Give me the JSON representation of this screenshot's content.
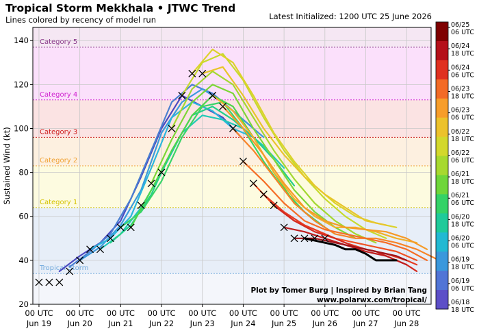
{
  "header": {
    "title": "Tropical Storm Mekkhala • JTWC Trend",
    "subtitle": "Lines colored by recency of model run",
    "initialized": "Latest Initialized: 1200 UTC 25 June 2026"
  },
  "credits": {
    "line1": "Plot by Tomer Burg | Inspired by Brian Tang",
    "line2": "www.polarwx.com/tropical/"
  },
  "chart_data": {
    "type": "line",
    "ylabel": "Sustained Wind (kt)",
    "ylim": [
      20,
      146
    ],
    "xlim": [
      -0.15,
      9.6
    ],
    "x_ticks": [
      {
        "x": 0,
        "label": "00 UTC\nJun 19"
      },
      {
        "x": 1,
        "label": "00 UTC\nJun 20"
      },
      {
        "x": 2,
        "label": "00 UTC\nJun 21"
      },
      {
        "x": 3,
        "label": "00 UTC\nJun 22"
      },
      {
        "x": 4,
        "label": "00 UTC\nJun 23"
      },
      {
        "x": 5,
        "label": "00 UTC\nJun 24"
      },
      {
        "x": 6,
        "label": "00 UTC\nJun 25"
      },
      {
        "x": 7,
        "label": "00 UTC\nJun 26"
      },
      {
        "x": 8,
        "label": "00 UTC\nJun 27"
      },
      {
        "x": 9,
        "label": "00 UTC\nJun 28"
      }
    ],
    "y_ticks": [
      20,
      40,
      60,
      80,
      100,
      120,
      140
    ],
    "grid": true,
    "categories": [
      {
        "name": "Tropical Storm",
        "lo": 34,
        "hi": 64,
        "color": "#6fa8dc"
      },
      {
        "name": "Category 1",
        "lo": 64,
        "hi": 83,
        "color": "#d4c200"
      },
      {
        "name": "Category 2",
        "lo": 83,
        "hi": 96,
        "color": "#f0a030"
      },
      {
        "name": "Category 3",
        "lo": 96,
        "hi": 113,
        "color": "#cc1a1a"
      },
      {
        "name": "Category 4",
        "lo": 113,
        "hi": 137,
        "color": "#d020d0"
      },
      {
        "name": "Category 5",
        "lo": 137,
        "hi": 146,
        "color": "#8a3a8a"
      }
    ],
    "best_track": [
      [
        0,
        30
      ],
      [
        0.25,
        30
      ],
      [
        0.5,
        30
      ],
      [
        0.75,
        35
      ],
      [
        1,
        40
      ],
      [
        1.25,
        45
      ],
      [
        1.5,
        45
      ],
      [
        1.75,
        50
      ],
      [
        2,
        55
      ],
      [
        2.25,
        55
      ],
      [
        2.5,
        65
      ],
      [
        2.75,
        75
      ],
      [
        3,
        80
      ],
      [
        3.25,
        100
      ],
      [
        3.5,
        115
      ],
      [
        3.75,
        125
      ],
      [
        4,
        125
      ],
      [
        4.25,
        115
      ],
      [
        4.5,
        110
      ],
      [
        4.75,
        100
      ],
      [
        5,
        85
      ],
      [
        5.25,
        75
      ],
      [
        5.5,
        70
      ],
      [
        5.75,
        65
      ],
      [
        6,
        55
      ],
      [
        6.25,
        50
      ],
      [
        6.5,
        50
      ],
      [
        6.75,
        50
      ],
      [
        7,
        50
      ]
    ],
    "series": [
      {
        "color": "#4a4ac0",
        "points": [
          [
            0.5,
            35
          ],
          [
            1,
            42
          ],
          [
            1.5,
            48
          ],
          [
            2,
            58
          ],
          [
            2.5,
            78
          ],
          [
            3,
            100
          ],
          [
            3.5,
            115
          ],
          [
            4,
            110
          ],
          [
            4.5,
            105
          ],
          [
            5,
            95
          ]
        ]
      },
      {
        "color": "#4a7fd0",
        "points": [
          [
            0.75,
            37
          ],
          [
            1.25,
            44
          ],
          [
            1.75,
            52
          ],
          [
            2.25,
            68
          ],
          [
            2.75,
            90
          ],
          [
            3.25,
            112
          ],
          [
            3.75,
            120
          ],
          [
            4.25,
            116
          ],
          [
            4.75,
            108
          ],
          [
            5.25,
            100
          ]
        ]
      },
      {
        "color": "#3c9adc",
        "points": [
          [
            1,
            40
          ],
          [
            1.5,
            46
          ],
          [
            2,
            56
          ],
          [
            2.5,
            72
          ],
          [
            3,
            98
          ],
          [
            3.5,
            112
          ],
          [
            4,
            118
          ],
          [
            4.5,
            112
          ],
          [
            5,
            104
          ],
          [
            5.5,
            96
          ]
        ]
      },
      {
        "color": "#2cb7dc",
        "points": [
          [
            1.25,
            45
          ],
          [
            1.75,
            50
          ],
          [
            2.25,
            60
          ],
          [
            2.75,
            82
          ],
          [
            3.25,
            105
          ],
          [
            3.75,
            112
          ],
          [
            4.25,
            108
          ],
          [
            4.75,
            100
          ],
          [
            5.25,
            96
          ]
        ]
      },
      {
        "color": "#21c9b6",
        "points": [
          [
            1.5,
            45
          ],
          [
            2,
            52
          ],
          [
            2.5,
            64
          ],
          [
            3,
            80
          ],
          [
            3.5,
            98
          ],
          [
            4,
            106
          ],
          [
            4.5,
            104
          ],
          [
            5,
            100
          ],
          [
            5.5,
            92
          ],
          [
            6,
            82
          ]
        ]
      },
      {
        "color": "#24cf8a",
        "points": [
          [
            1.75,
            48
          ],
          [
            2.25,
            56
          ],
          [
            2.75,
            70
          ],
          [
            3.25,
            90
          ],
          [
            3.75,
            106
          ],
          [
            4.25,
            110
          ],
          [
            4.75,
            104
          ],
          [
            5.25,
            96
          ],
          [
            5.75,
            86
          ],
          [
            6.25,
            74
          ]
        ]
      },
      {
        "color": "#3ad468",
        "points": [
          [
            2,
            55
          ],
          [
            2.5,
            62
          ],
          [
            3,
            76
          ],
          [
            3.5,
            96
          ],
          [
            4,
            110
          ],
          [
            4.5,
            112
          ],
          [
            5,
            100
          ],
          [
            5.5,
            85
          ],
          [
            6,
            72
          ],
          [
            6.5,
            62
          ],
          [
            7,
            55
          ]
        ]
      },
      {
        "color": "#4fd54b",
        "points": [
          [
            2.25,
            55
          ],
          [
            2.75,
            72
          ],
          [
            3.25,
            90
          ],
          [
            3.75,
            106
          ],
          [
            4.25,
            115
          ],
          [
            4.75,
            110
          ],
          [
            5.25,
            96
          ],
          [
            5.75,
            80
          ],
          [
            6.25,
            66
          ],
          [
            6.75,
            58
          ],
          [
            7.25,
            52
          ]
        ]
      },
      {
        "color": "#7cd636",
        "points": [
          [
            2.75,
            75
          ],
          [
            3.25,
            95
          ],
          [
            3.75,
            112
          ],
          [
            4.25,
            120
          ],
          [
            4.75,
            116
          ],
          [
            5.25,
            100
          ],
          [
            5.75,
            86
          ],
          [
            6.25,
            72
          ],
          [
            6.75,
            62
          ],
          [
            7.25,
            55
          ],
          [
            7.75,
            50
          ]
        ]
      },
      {
        "color": "#a3d830",
        "points": [
          [
            3.25,
            100
          ],
          [
            3.75,
            118
          ],
          [
            4.25,
            126
          ],
          [
            4.75,
            120
          ],
          [
            5.25,
            105
          ],
          [
            5.75,
            90
          ],
          [
            6.25,
            77
          ],
          [
            6.75,
            66
          ],
          [
            7.25,
            58
          ],
          [
            7.75,
            52
          ],
          [
            8.25,
            48
          ]
        ]
      },
      {
        "color": "#c6da2c",
        "points": [
          [
            3.5,
            115
          ],
          [
            4,
            130
          ],
          [
            4.5,
            134
          ],
          [
            5,
            122
          ],
          [
            5.5,
            105
          ],
          [
            6,
            90
          ],
          [
            6.5,
            78
          ],
          [
            7,
            68
          ],
          [
            7.5,
            60
          ],
          [
            8,
            54
          ],
          [
            8.5,
            50
          ]
        ]
      },
      {
        "color": "#dcd22a",
        "points": [
          [
            3.75,
            125
          ],
          [
            4.25,
            136
          ],
          [
            4.75,
            130
          ],
          [
            5.25,
            115
          ],
          [
            5.75,
            98
          ],
          [
            6.25,
            85
          ],
          [
            6.75,
            74
          ],
          [
            7.25,
            66
          ],
          [
            7.75,
            60
          ],
          [
            8.25,
            57
          ],
          [
            8.75,
            55
          ]
        ]
      },
      {
        "color": "#e8c52a",
        "points": [
          [
            4,
            125
          ],
          [
            4.5,
            128
          ],
          [
            5,
            115
          ],
          [
            5.5,
            100
          ],
          [
            6,
            88
          ],
          [
            6.5,
            78
          ],
          [
            7,
            70
          ],
          [
            7.5,
            64
          ],
          [
            8,
            58
          ],
          [
            8.5,
            56
          ]
        ]
      },
      {
        "color": "#f0b02a",
        "points": [
          [
            4.25,
            115
          ],
          [
            4.75,
            108
          ],
          [
            5.25,
            96
          ],
          [
            5.75,
            80
          ],
          [
            6.25,
            68
          ],
          [
            6.75,
            60
          ],
          [
            7.25,
            55
          ],
          [
            7.75,
            55
          ],
          [
            8.25,
            53
          ],
          [
            8.75,
            50
          ],
          [
            9.25,
            48
          ]
        ]
      },
      {
        "color": "#f59a28",
        "points": [
          [
            4.5,
            110
          ],
          [
            5,
            100
          ],
          [
            5.5,
            88
          ],
          [
            6,
            75
          ],
          [
            6.5,
            64
          ],
          [
            7,
            58
          ],
          [
            7.5,
            55
          ],
          [
            8,
            54
          ],
          [
            8.5,
            53
          ],
          [
            9,
            50
          ],
          [
            9.5,
            45
          ]
        ]
      },
      {
        "color": "#f78428",
        "points": [
          [
            4.75,
            100
          ],
          [
            5.25,
            90
          ],
          [
            5.75,
            78
          ],
          [
            6.25,
            66
          ],
          [
            6.75,
            58
          ],
          [
            7.25,
            52
          ],
          [
            7.75,
            50
          ],
          [
            8.25,
            50
          ],
          [
            8.75,
            48
          ],
          [
            9.25,
            45
          ],
          [
            9.8,
            40
          ]
        ]
      },
      {
        "color": "#f56d26",
        "points": [
          [
            5,
            85
          ],
          [
            5.5,
            76
          ],
          [
            6,
            66
          ],
          [
            6.5,
            58
          ],
          [
            7,
            54
          ],
          [
            7.5,
            52
          ],
          [
            8,
            50
          ],
          [
            8.5,
            48
          ],
          [
            9,
            45
          ],
          [
            9.5,
            40
          ]
        ]
      },
      {
        "color": "#f05224",
        "points": [
          [
            5.25,
            75
          ],
          [
            5.75,
            65
          ],
          [
            6.25,
            58
          ],
          [
            6.75,
            54
          ],
          [
            7.25,
            50
          ],
          [
            7.75,
            48
          ],
          [
            8.25,
            46
          ],
          [
            8.75,
            44
          ],
          [
            9.25,
            40
          ]
        ]
      },
      {
        "color": "#e63b22",
        "points": [
          [
            5.5,
            70
          ],
          [
            6,
            62
          ],
          [
            6.5,
            56
          ],
          [
            7,
            52
          ],
          [
            7.5,
            48
          ],
          [
            8,
            45
          ],
          [
            8.5,
            43
          ],
          [
            9,
            40
          ],
          [
            9.25,
            38
          ]
        ]
      },
      {
        "color": "#d42a20",
        "points": [
          [
            5.75,
            65
          ],
          [
            6.25,
            58
          ],
          [
            6.75,
            53
          ],
          [
            7.25,
            50
          ],
          [
            7.75,
            46
          ],
          [
            8.25,
            44
          ],
          [
            8.75,
            40
          ],
          [
            9,
            38
          ],
          [
            9.25,
            35
          ]
        ]
      },
      {
        "color": "#bf1d1e",
        "points": [
          [
            6,
            55
          ],
          [
            6.5,
            53
          ],
          [
            7,
            50
          ],
          [
            7.5,
            47
          ],
          [
            8,
            44
          ],
          [
            8.5,
            42
          ],
          [
            8.75,
            40
          ],
          [
            9,
            38
          ]
        ]
      },
      {
        "color": "#a0141a",
        "points": [
          [
            6.25,
            50
          ],
          [
            6.75,
            50
          ],
          [
            7.25,
            48
          ],
          [
            7.75,
            46
          ],
          [
            8.25,
            44
          ],
          [
            8.75,
            42
          ],
          [
            9,
            40
          ]
        ]
      },
      {
        "color": "#000000",
        "points": [
          [
            6.5,
            50
          ],
          [
            7,
            48
          ],
          [
            7.25,
            47
          ],
          [
            7.5,
            45
          ],
          [
            7.75,
            45
          ],
          [
            8,
            43
          ],
          [
            8.25,
            40
          ],
          [
            8.5,
            40
          ],
          [
            8.75,
            40
          ]
        ]
      }
    ],
    "colorbar": {
      "labels": [
        "06/25\n06 UTC",
        "06/24\n18 UTC",
        "06/24\n06 UTC",
        "06/23\n18 UTC",
        "06/23\n06 UTC",
        "06/22\n18 UTC",
        "06/22\n06 UTC",
        "06/21\n18 UTC",
        "06/21\n06 UTC",
        "06/20\n18 UTC",
        "06/20\n06 UTC",
        "06/19\n18 UTC",
        "06/19\n06 UTC",
        "06/18\n18 UTC"
      ],
      "colors": [
        "#7f0000",
        "#b5101a",
        "#e03020",
        "#f36b26",
        "#f79d2a",
        "#ecc22b",
        "#d3d82c",
        "#a7d92f",
        "#6fd63a",
        "#34d267",
        "#1fca9a",
        "#22b9d2",
        "#3a98dc",
        "#5175d6",
        "#5d4fc8"
      ]
    }
  }
}
